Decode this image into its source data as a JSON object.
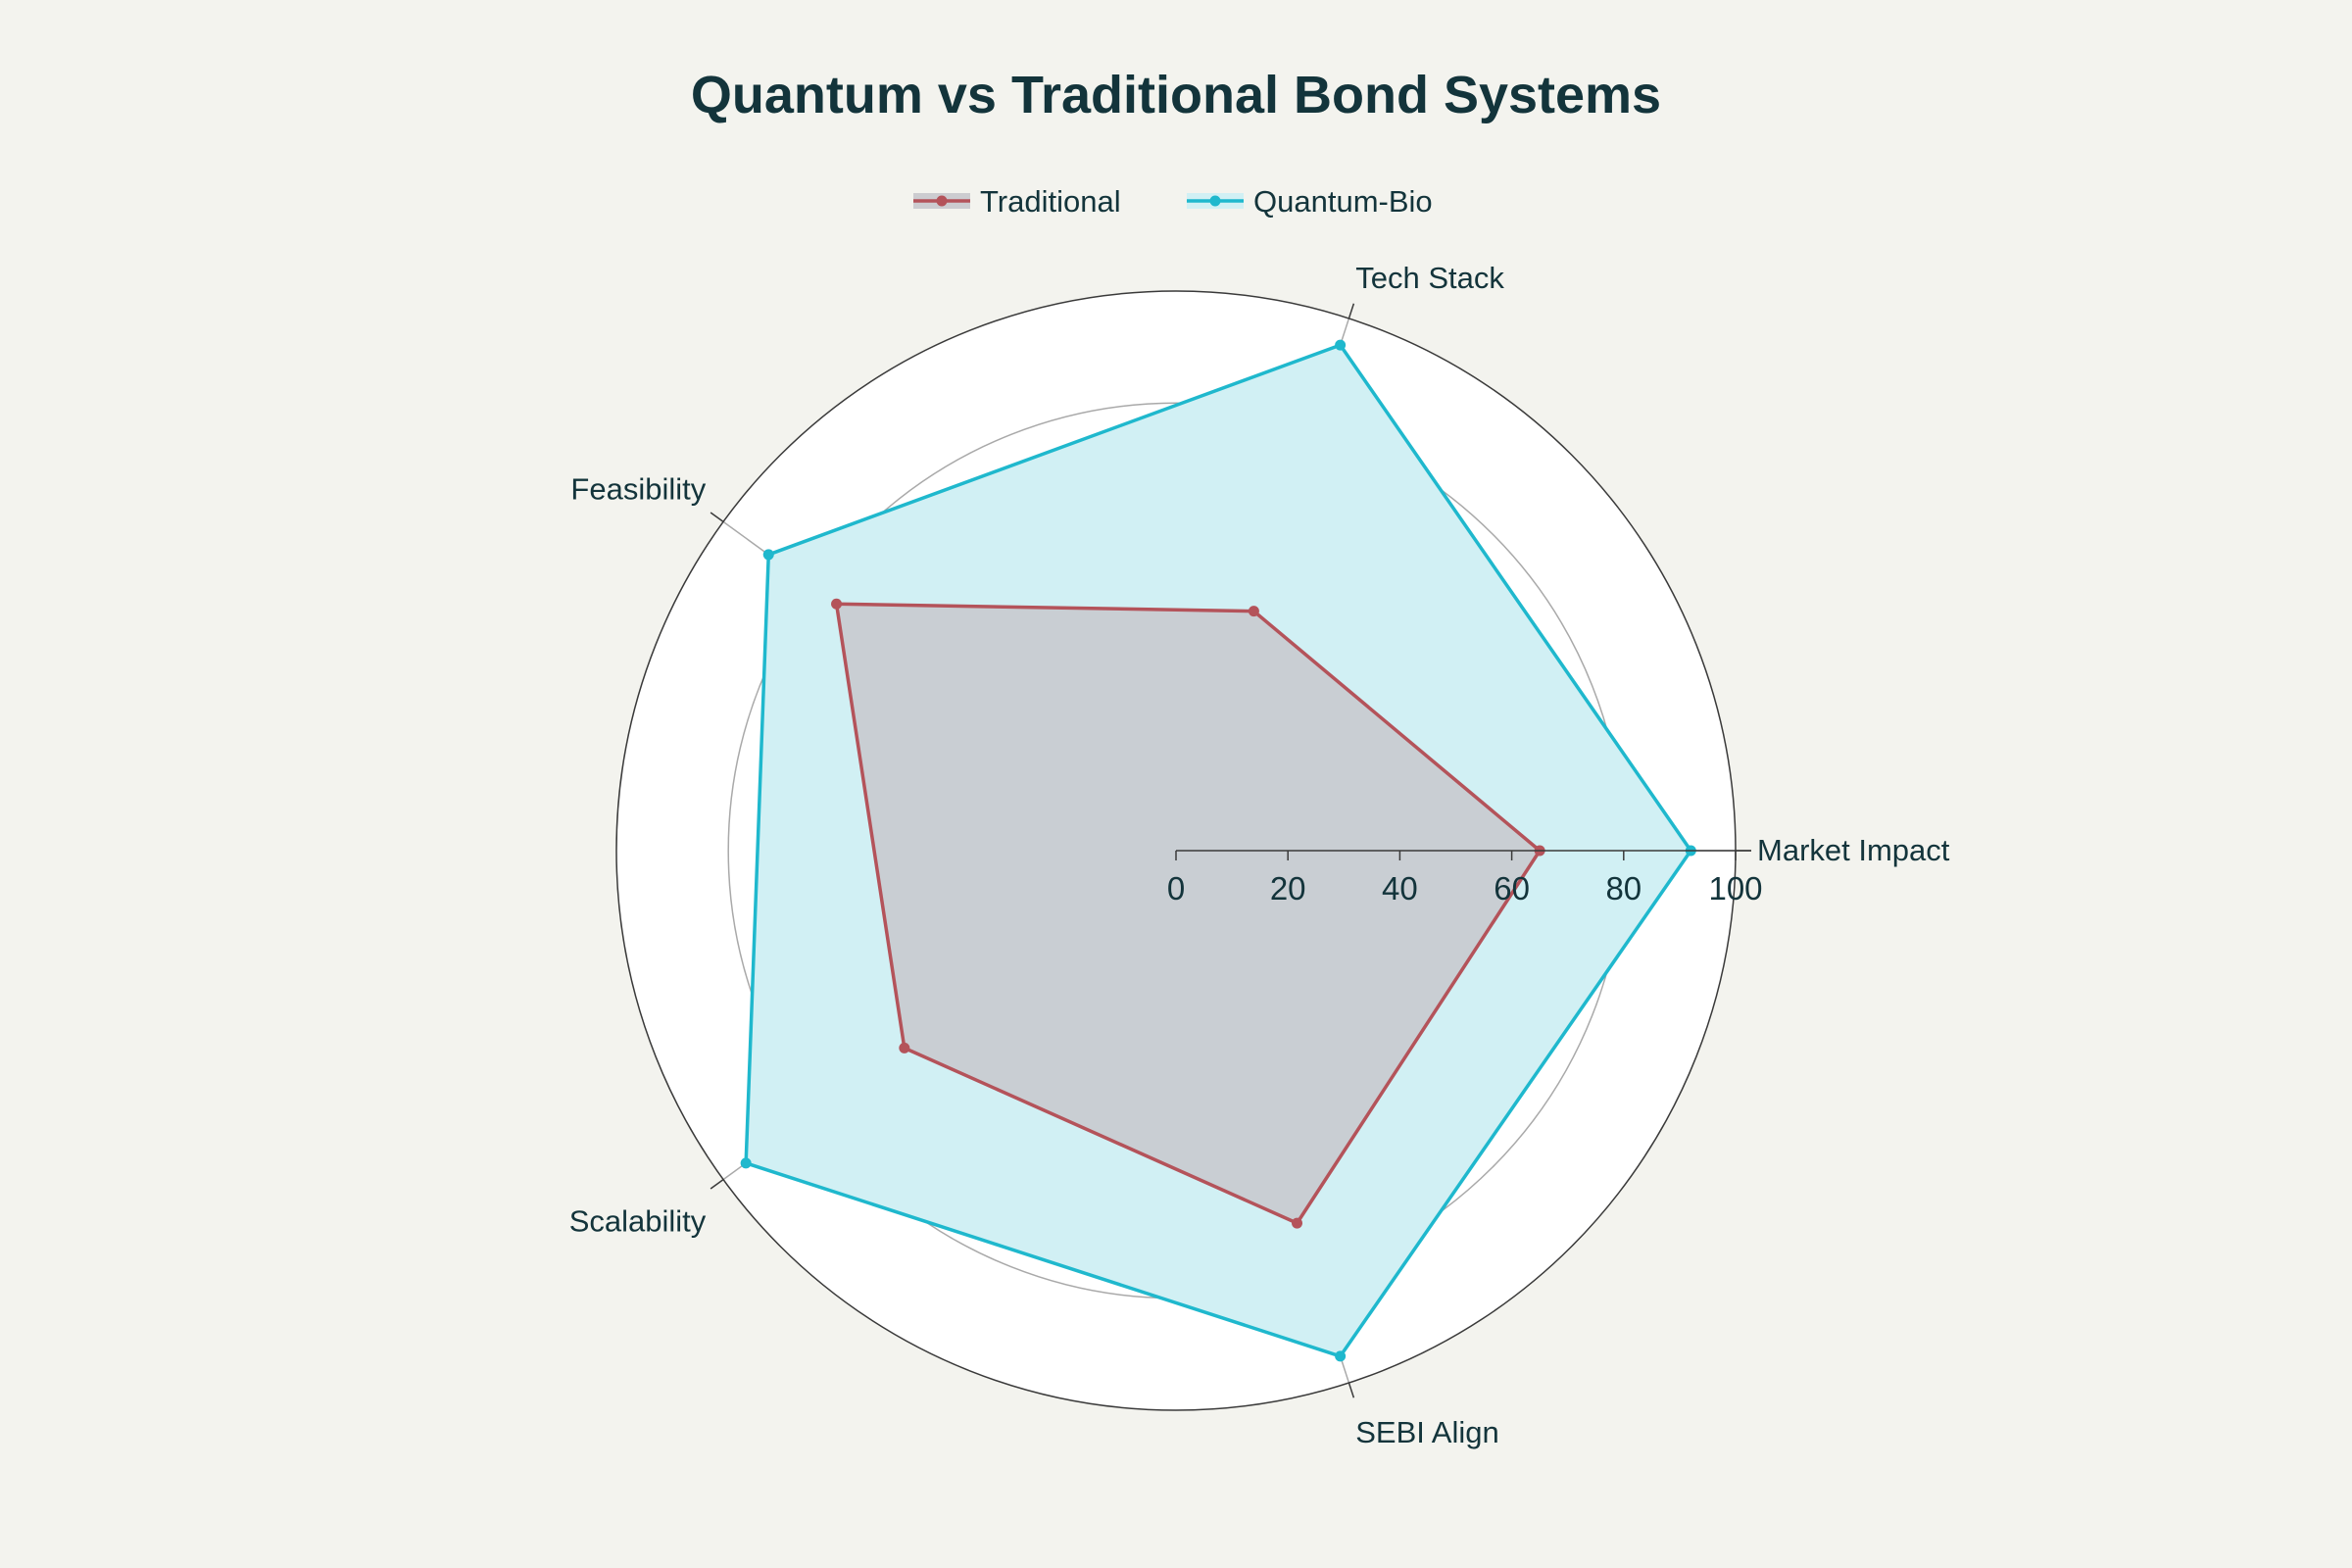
{
  "chart_data": {
    "type": "radar",
    "title": "Quantum vs Traditional Bond Systems",
    "categories": [
      "Market Impact",
      "Tech Stack",
      "Feasibility",
      "Scalability",
      "SEBI Align"
    ],
    "radial_range": [
      0,
      100
    ],
    "radial_ticks": [
      0,
      20,
      40,
      60,
      80,
      100
    ],
    "radial_tick_labels": [
      "0",
      "20",
      "40",
      "60",
      "80",
      "100"
    ],
    "grid": true,
    "legend_position": "top-center",
    "series": [
      {
        "name": "Traditional",
        "values": [
          65,
          45,
          75,
          60,
          70
        ],
        "color": "#b4535a",
        "fill": "#c8c8cc"
      },
      {
        "name": "Quantum-Bio",
        "values": [
          92,
          95,
          90,
          95,
          95
        ],
        "color": "#1fb8cd",
        "fill": "#d1f0f4"
      }
    ]
  }
}
